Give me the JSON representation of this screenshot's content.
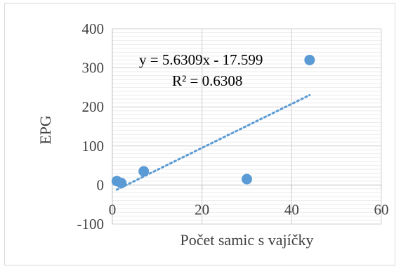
{
  "chart_data": {
    "type": "scatter",
    "xlabel": "Počet samic s vajíčky",
    "ylabel": "EPG",
    "xlim": [
      0,
      60
    ],
    "ylim": [
      -100,
      400
    ],
    "x_ticks": [
      "0",
      "20",
      "40",
      "60"
    ],
    "y_ticks": [
      "-100",
      "0",
      "100",
      "200",
      "300",
      "400"
    ],
    "x_tick_values": [
      0,
      20,
      40,
      60
    ],
    "y_tick_values": [
      -100,
      0,
      100,
      200,
      300,
      400
    ],
    "grid": true,
    "legend": "none",
    "points": [
      {
        "x": 1,
        "y": 10
      },
      {
        "x": 2,
        "y": 5
      },
      {
        "x": 7,
        "y": 35
      },
      {
        "x": 30,
        "y": 15
      },
      {
        "x": 44,
        "y": 320
      }
    ],
    "trendline": {
      "type": "linear",
      "slope": 5.6309,
      "intercept": -17.599,
      "x_range": [
        1,
        44
      ],
      "equation_label": "y = 5.6309x - 17.599",
      "r2_label": "R² = 0.6308"
    },
    "colors": {
      "marker": "#5b9bd5",
      "trendline": "#5b9bd5",
      "gridline": "#d9d9d9",
      "axis": "#bfbfbf"
    }
  }
}
